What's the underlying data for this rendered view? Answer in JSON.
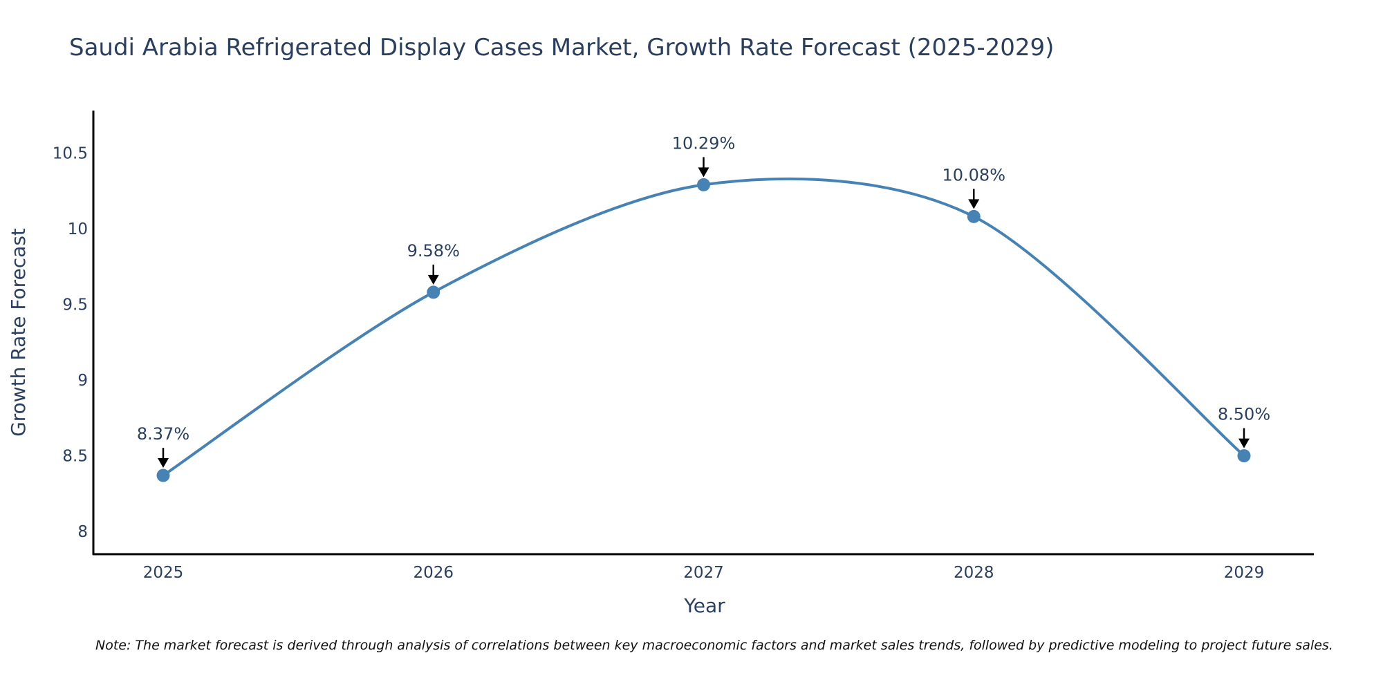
{
  "chart_data": {
    "type": "line",
    "title": "Saudi Arabia Refrigerated Display Cases Market, Growth Rate Forecast (2025-2029)",
    "xlabel": "Year",
    "ylabel": "Growth Rate Forecast",
    "categories": [
      "2025",
      "2026",
      "2027",
      "2028",
      "2029"
    ],
    "values": [
      8.37,
      9.58,
      10.29,
      10.08,
      8.5
    ],
    "data_labels": [
      "8.37%",
      "9.58%",
      "10.29%",
      "10.08%",
      "8.50%"
    ],
    "yticks": [
      8,
      8.5,
      9,
      9.5,
      10,
      10.5
    ],
    "ytick_labels": [
      "8",
      "8.5",
      "9",
      "9.5",
      "10",
      "10.5"
    ],
    "ylim": [
      7.85,
      10.78
    ],
    "grid": false,
    "line_shape": "spline",
    "colors": {
      "line": "#4682b4",
      "axis": "#000000",
      "text": "#2a3f5f"
    },
    "note": "Note: The market forecast is derived through analysis of correlations between key macroeconomic factors and market sales trends, followed by predictive modeling to project future sales."
  }
}
